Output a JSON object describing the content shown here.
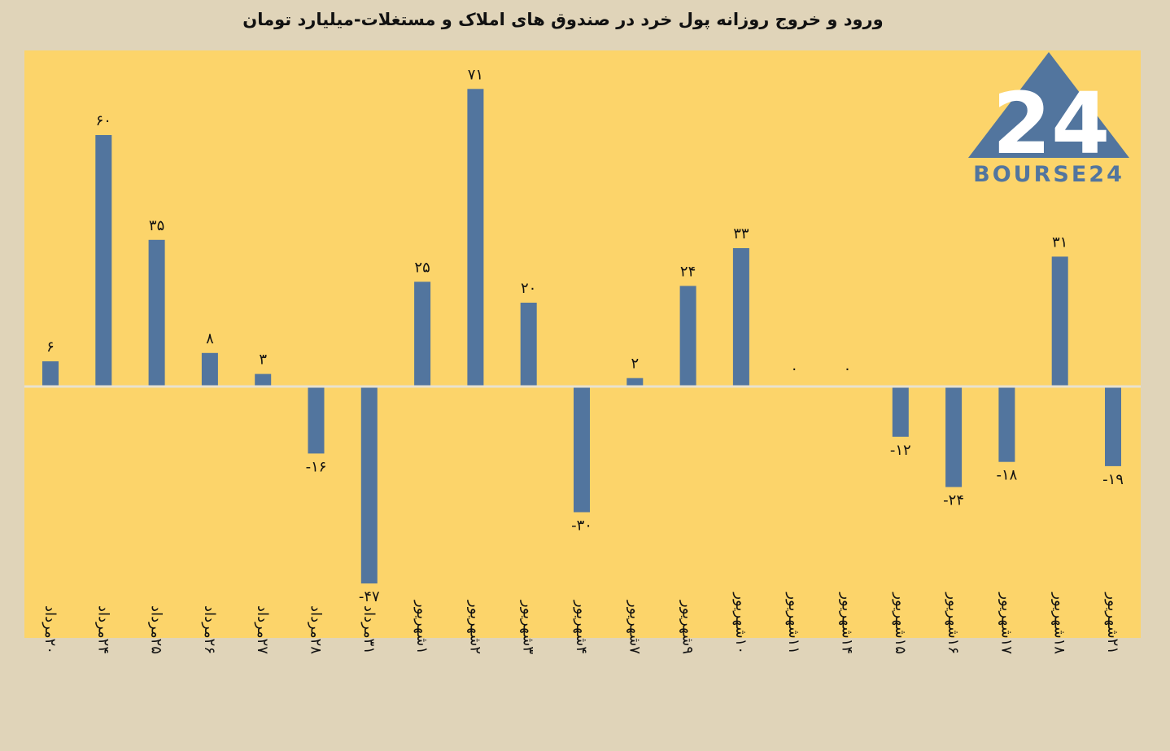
{
  "chart_data": {
    "type": "bar",
    "title": "ورود و خروج روزانه پول خرد در صندوق های املاک و مستغلات-میلیارد تومان",
    "categories": [
      "۲۰مرداد",
      "۲۴مرداد",
      "۲۵مرداد",
      "۲۶مرداد",
      "۲۷مرداد",
      "۲۸مرداد",
      "۳۱مرداد",
      "۱شهریور",
      "۲شهریور",
      "۳شهریور",
      "۴شهریور",
      "۷شهریور",
      "۹شهریور",
      "۱۰شهریور",
      "۱۱شهریور",
      "۱۴شهریور",
      "۱۵شهریور",
      "۱۶شهریور",
      "۱۷شهریور",
      "۱۸شهریور",
      "۲۱شهریور"
    ],
    "values": [
      6,
      60,
      35,
      8,
      3,
      -16,
      -47,
      25,
      71,
      20,
      -30,
      2,
      24,
      33,
      0,
      0,
      -12,
      -24,
      -18,
      31,
      -19
    ],
    "value_labels": [
      "۶",
      "۶۰",
      "۳۵",
      "۸",
      "۳",
      "-۱۶",
      "-۴۷",
      "۲۵",
      "۷۱",
      "۲۰",
      "-۳۰",
      "۲",
      "۲۴",
      "۳۳",
      "۰",
      "۰",
      "-۱۲",
      "-۲۴",
      "-۱۸",
      "۳۱",
      "-۱۹"
    ],
    "xlabel": "",
    "ylabel": "",
    "ylim": [
      -60,
      80
    ],
    "grid": false,
    "legend": "none",
    "colors": {
      "bar": "#52759e",
      "plot_background": "#fcd46a",
      "page_background": "#e0d4b9",
      "zero_line": "#e8e2d0",
      "label": "#111111"
    }
  },
  "logo": {
    "text": "BOURSE24",
    "mark": "24",
    "color": "#52759e"
  }
}
